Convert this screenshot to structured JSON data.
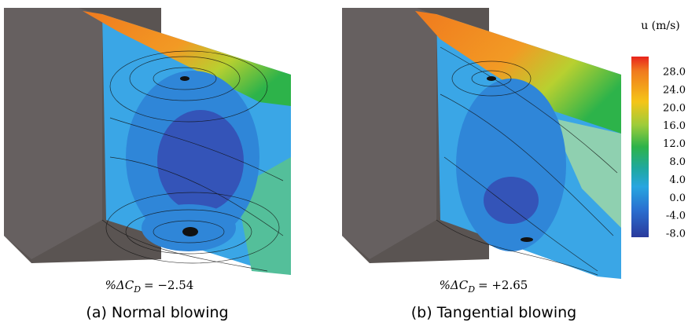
{
  "panels": [
    {
      "metric": {
        "symbol": "%ΔC",
        "subscript": "D",
        "value": "= −2.54"
      },
      "caption": "(a) Normal blowing"
    },
    {
      "metric": {
        "symbol": "%ΔC",
        "subscript": "D",
        "value": "= +2.65"
      },
      "caption": "(b) Tangential blowing"
    }
  ],
  "colorbar": {
    "label": "u (m/s)",
    "ticks": [
      "28.0",
      "24.0",
      "20.0",
      "16.0",
      "12.0",
      "8.0",
      "4.0",
      "0.0",
      "-4.0",
      "-8.0"
    ]
  }
}
